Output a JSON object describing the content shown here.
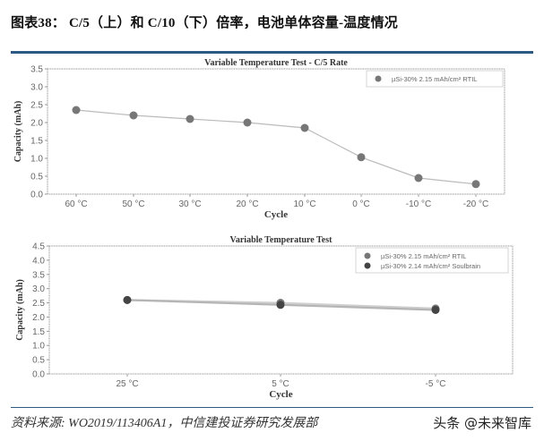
{
  "figure": {
    "title": "图表38： C/5（上）和 C/10（下）倍率，电池单体容量-温度情况",
    "source": "资料来源: WO2019/113406A1，中信建投证券研究发展部",
    "watermark": "头条 @未来智库",
    "colors": {
      "rule": "#2c5a85",
      "marker_rtil": "#777777",
      "marker_soulbrain": "#444444",
      "line": "#bbbbbb"
    }
  },
  "chart_data": [
    {
      "type": "line",
      "title": "Variable Temperature Test - C/5 Rate",
      "xlabel": "Cycle",
      "ylabel": "Capacity (mAh)",
      "categories": [
        "60 °C",
        "50 °C",
        "30 °C",
        "20 °C",
        "10 °C",
        "0 °C",
        "-10 °C",
        "-20 °C"
      ],
      "series": [
        {
          "name": "µSi-30% 2.15 mAh/cm² RTIL",
          "values": [
            2.35,
            2.2,
            2.1,
            2.0,
            1.85,
            1.03,
            0.45,
            0.28
          ]
        }
      ],
      "ylim": [
        0,
        3.5
      ],
      "yticks": [
        "0.0",
        "0.5",
        "1.0",
        "1.5",
        "2.0",
        "2.5",
        "3.0",
        "3.5"
      ],
      "grid": false,
      "legend_position": "upper right"
    },
    {
      "type": "line",
      "title": "Variable Temperature Test",
      "xlabel": "Cycle",
      "ylabel": "Capacity (mAh)",
      "categories": [
        "25 °C",
        "5 °C",
        "-5 °C"
      ],
      "series": [
        {
          "name": "µSi-30% 2.15 mAh/cm² RTIL",
          "values": [
            2.6,
            2.5,
            2.3
          ]
        },
        {
          "name": "µSi-30% 2.14 mAh/cm² Soulbrain",
          "values": [
            2.6,
            2.43,
            2.25
          ]
        }
      ],
      "ylim": [
        0,
        4.5
      ],
      "yticks": [
        "0.0",
        "0.5",
        "1.0",
        "1.5",
        "2.0",
        "2.5",
        "3.0",
        "3.5",
        "4.0",
        "4.5"
      ],
      "grid": false,
      "legend_position": "upper right"
    }
  ]
}
